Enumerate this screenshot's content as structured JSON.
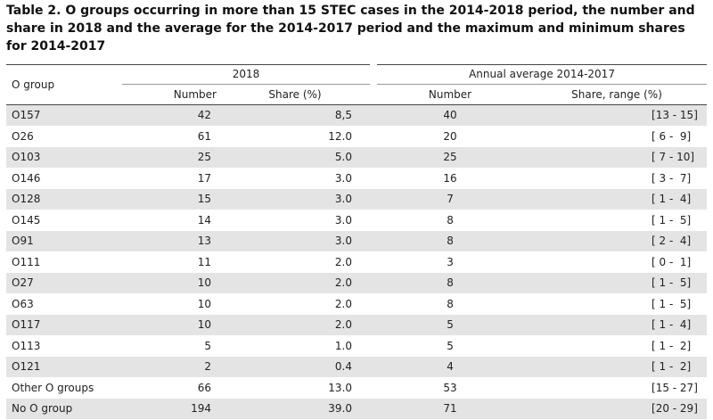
{
  "caption": "Table 2. O groups occurring in more than 15 STEC cases in the 2014-2018 period, the number and share in 2018 and the average for the 2014-2017 period and the maximum and minimum shares for 2014-2017",
  "header": {
    "row_label": "O group",
    "group_2018": "2018",
    "group_avg": "Annual average 2014-2017",
    "number_2018": "Number",
    "share_2018": "Share (%)",
    "number_avg": "Number",
    "share_range": "Share, range (%)"
  },
  "rows": [
    {
      "group": "O157",
      "number_2018": "42",
      "share_2018": "8,5",
      "number_avg": "40",
      "range": "[13 - 15]"
    },
    {
      "group": "O26",
      "number_2018": "61",
      "share_2018": "12.0",
      "number_avg": "20",
      "range": "[ 6 -  9]"
    },
    {
      "group": "O103",
      "number_2018": "25",
      "share_2018": "5.0",
      "number_avg": "25",
      "range": "[ 7 - 10]"
    },
    {
      "group": "O146",
      "number_2018": "17",
      "share_2018": "3.0",
      "number_avg": "16",
      "range": "[ 3 -  7]"
    },
    {
      "group": "O128",
      "number_2018": "15",
      "share_2018": "3.0",
      "number_avg": "7",
      "range": "[ 1 -  4]"
    },
    {
      "group": "O145",
      "number_2018": "14",
      "share_2018": "3.0",
      "number_avg": "8",
      "range": "[ 1 -  5]"
    },
    {
      "group": "O91",
      "number_2018": "13",
      "share_2018": "3.0",
      "number_avg": "8",
      "range": "[ 2 -  4]"
    },
    {
      "group": "O111",
      "number_2018": "11",
      "share_2018": "2.0",
      "number_avg": "3",
      "range": "[ 0 -  1]"
    },
    {
      "group": "O27",
      "number_2018": "10",
      "share_2018": "2.0",
      "number_avg": "8",
      "range": "[ 1 -  5]"
    },
    {
      "group": "O63",
      "number_2018": "10",
      "share_2018": "2.0",
      "number_avg": "8",
      "range": "[ 1 -  5]"
    },
    {
      "group": "O117",
      "number_2018": "10",
      "share_2018": "2.0",
      "number_avg": "5",
      "range": "[ 1 -  4]"
    },
    {
      "group": "O113",
      "number_2018": "5",
      "share_2018": "1.0",
      "number_avg": "5",
      "range": "[ 1 -  2]"
    },
    {
      "group": "O121",
      "number_2018": "2",
      "share_2018": "0.4",
      "number_avg": "4",
      "range": "[ 1 -  2]"
    },
    {
      "group": "Other O groups",
      "number_2018": "66",
      "share_2018": "13.0",
      "number_avg": "53",
      "range": "[15 - 27]"
    },
    {
      "group": "No O group",
      "number_2018": "194",
      "share_2018": "39.0",
      "number_avg": "71",
      "range": "[20 - 29]"
    }
  ]
}
